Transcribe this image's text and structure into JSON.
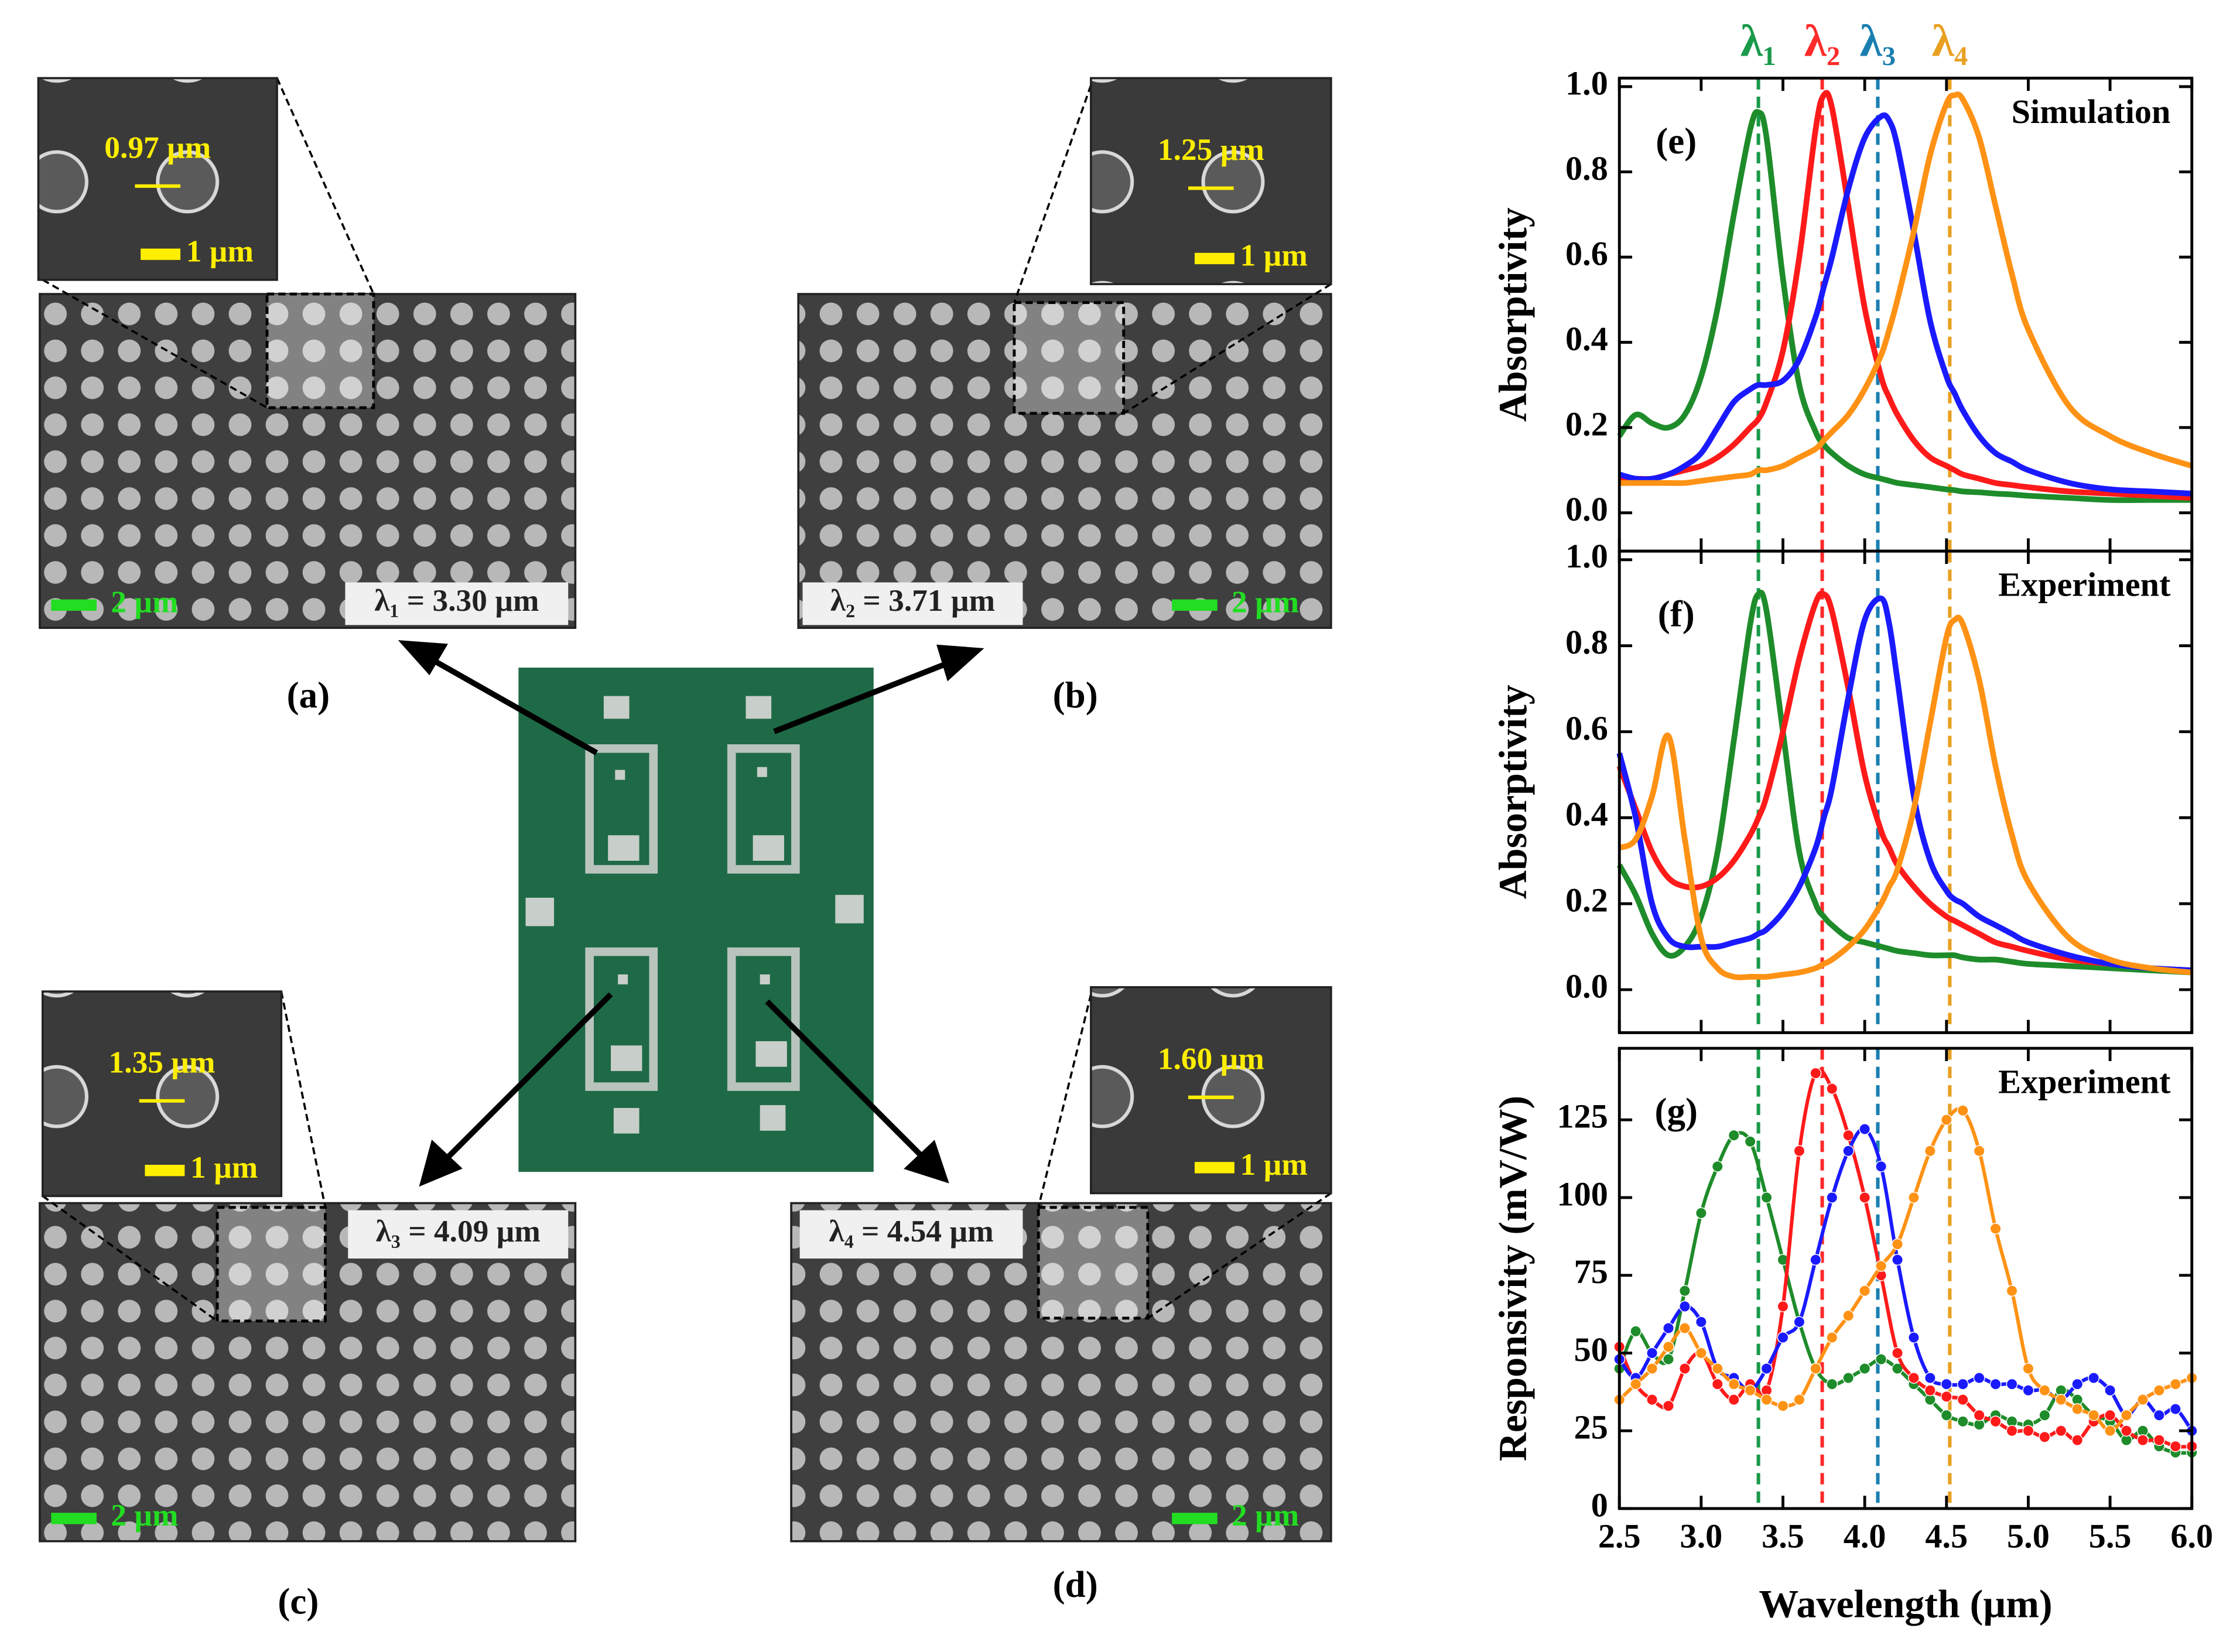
{
  "panels": [
    {
      "label": "(a)",
      "diameter": "0.97 µm",
      "scale_inset": "1 µm",
      "scale_main": "2 µm",
      "wavelength": "λ₁ = 3.30 µm"
    },
    {
      "label": "(b)",
      "diameter": "1.25 µm",
      "scale_inset": "1 µm",
      "scale_main": "2 µm",
      "wavelength": "λ₂ = 3.71 µm"
    },
    {
      "label": "(c)",
      "diameter": "1.35 µm",
      "scale_inset": "1 µm",
      "scale_main": "2 µm",
      "wavelength": "λ₃ = 4.09 µm"
    },
    {
      "label": "(d)",
      "diameter": "1.60 µm",
      "scale_inset": "1 µm",
      "scale_main": "2 µm",
      "wavelength": "λ₄ = 4.54 µm"
    }
  ],
  "chart_data": [
    {
      "type": "line",
      "panel_label": "(e)",
      "note": "Simulation",
      "y_label": "Absorptivity",
      "show_xtick_labels": false,
      "markers": false,
      "x": [
        2.5,
        2.6,
        2.7,
        2.8,
        2.9,
        3.0,
        3.1,
        3.2,
        3.3,
        3.35,
        3.4,
        3.5,
        3.6,
        3.7,
        3.75,
        3.8,
        3.9,
        4.0,
        4.1,
        4.15,
        4.2,
        4.3,
        4.4,
        4.5,
        4.55,
        4.6,
        4.7,
        4.8,
        4.9,
        5.0,
        5.25,
        5.5,
        5.75,
        6.0
      ],
      "xlim": [
        2.5,
        6.0
      ],
      "ylim": [
        -0.09,
        1.02
      ],
      "xticks": [
        2.5,
        3,
        3.5,
        4,
        4.5,
        5,
        5.5,
        6
      ],
      "yticks": [
        {
          "value": 0,
          "label": "0.0"
        },
        0.2,
        0.4,
        0.6,
        0.8,
        {
          "value": 1,
          "label": "1.0"
        }
      ],
      "vlines": [
        {
          "value": 3.35,
          "color": "#1a9a4a",
          "label": "λ₁"
        },
        {
          "value": 3.74,
          "color": "#ff2a2a",
          "label": "λ₂"
        },
        {
          "value": 4.08,
          "color": "#1a7fb0",
          "label": "λ₃"
        },
        {
          "value": 4.52,
          "color": "#e8a020",
          "label": "λ₄"
        }
      ],
      "series": [
        {
          "color": "#1e8c2a",
          "values": [
            0.18,
            0.23,
            0.21,
            0.2,
            0.23,
            0.32,
            0.48,
            0.7,
            0.9,
            0.94,
            0.88,
            0.55,
            0.3,
            0.19,
            0.16,
            0.14,
            0.11,
            0.09,
            0.08,
            0.075,
            0.07,
            0.065,
            0.06,
            0.055,
            0.053,
            0.05,
            0.048,
            0.045,
            0.043,
            0.04,
            0.035,
            0.03,
            0.03,
            0.03
          ]
        },
        {
          "color": "#ff1a1a",
          "values": [
            0.08,
            0.08,
            0.08,
            0.09,
            0.1,
            0.11,
            0.13,
            0.16,
            0.2,
            0.22,
            0.26,
            0.38,
            0.6,
            0.9,
            0.98,
            0.95,
            0.72,
            0.48,
            0.32,
            0.27,
            0.23,
            0.17,
            0.13,
            0.11,
            0.1,
            0.09,
            0.08,
            0.07,
            0.065,
            0.06,
            0.05,
            0.045,
            0.04,
            0.035
          ]
        },
        {
          "color": "#1a1aff",
          "values": [
            0.09,
            0.08,
            0.08,
            0.09,
            0.11,
            0.14,
            0.2,
            0.26,
            0.29,
            0.3,
            0.3,
            0.31,
            0.36,
            0.46,
            0.53,
            0.6,
            0.76,
            0.88,
            0.93,
            0.92,
            0.86,
            0.66,
            0.45,
            0.32,
            0.28,
            0.24,
            0.18,
            0.14,
            0.12,
            0.1,
            0.07,
            0.055,
            0.05,
            0.045
          ]
        },
        {
          "color": "#ff9214",
          "values": [
            0.07,
            0.07,
            0.07,
            0.07,
            0.07,
            0.075,
            0.08,
            0.085,
            0.09,
            0.1,
            0.1,
            0.11,
            0.13,
            0.15,
            0.17,
            0.19,
            0.23,
            0.29,
            0.37,
            0.43,
            0.5,
            0.66,
            0.84,
            0.96,
            0.98,
            0.97,
            0.88,
            0.72,
            0.56,
            0.43,
            0.25,
            0.18,
            0.14,
            0.11
          ]
        }
      ]
    },
    {
      "type": "line",
      "panel_label": "(f)",
      "note": "Experiment",
      "y_label": "Absorptivity",
      "show_xtick_labels": false,
      "markers": false,
      "x": [
        2.5,
        2.6,
        2.7,
        2.8,
        2.9,
        3.0,
        3.1,
        3.2,
        3.3,
        3.35,
        3.4,
        3.5,
        3.6,
        3.7,
        3.75,
        3.8,
        3.9,
        4.0,
        4.1,
        4.15,
        4.2,
        4.3,
        4.4,
        4.5,
        4.55,
        4.6,
        4.7,
        4.8,
        4.9,
        5.0,
        5.25,
        5.5,
        5.75,
        6.0
      ],
      "xlim": [
        2.5,
        6.0
      ],
      "ylim": [
        -0.1,
        1.02
      ],
      "xticks": [
        2.5,
        3,
        3.5,
        4,
        4.5,
        5,
        5.5,
        6
      ],
      "yticks": [
        {
          "value": 0,
          "label": "0.0"
        },
        0.2,
        0.4,
        0.6,
        0.8,
        {
          "value": 1,
          "label": "1.0"
        }
      ],
      "vlines": [
        {
          "value": 3.35,
          "color": "#1a9a4a"
        },
        {
          "value": 3.74,
          "color": "#ff2a2a"
        },
        {
          "value": 4.08,
          "color": "#1a7fb0"
        },
        {
          "value": 4.52,
          "color": "#e8a020"
        }
      ],
      "series": [
        {
          "color": "#1e8c2a",
          "values": [
            0.29,
            0.22,
            0.13,
            0.08,
            0.1,
            0.17,
            0.32,
            0.58,
            0.85,
            0.92,
            0.88,
            0.6,
            0.32,
            0.2,
            0.17,
            0.15,
            0.12,
            0.11,
            0.1,
            0.095,
            0.09,
            0.085,
            0.08,
            0.08,
            0.08,
            0.075,
            0.07,
            0.07,
            0.065,
            0.06,
            0.055,
            0.05,
            0.045,
            0.04
          ]
        },
        {
          "color": "#ff1a1a",
          "values": [
            0.52,
            0.42,
            0.32,
            0.26,
            0.24,
            0.24,
            0.26,
            0.3,
            0.36,
            0.4,
            0.45,
            0.6,
            0.77,
            0.9,
            0.92,
            0.88,
            0.7,
            0.5,
            0.37,
            0.33,
            0.29,
            0.24,
            0.2,
            0.17,
            0.16,
            0.15,
            0.13,
            0.11,
            0.1,
            0.09,
            0.07,
            0.06,
            0.05,
            0.045
          ]
        },
        {
          "color": "#1a1aff",
          "values": [
            0.55,
            0.4,
            0.2,
            0.12,
            0.1,
            0.1,
            0.1,
            0.11,
            0.12,
            0.13,
            0.14,
            0.18,
            0.24,
            0.33,
            0.4,
            0.47,
            0.68,
            0.86,
            0.91,
            0.85,
            0.72,
            0.45,
            0.3,
            0.23,
            0.21,
            0.2,
            0.17,
            0.15,
            0.13,
            0.11,
            0.08,
            0.06,
            0.05,
            0.045
          ]
        },
        {
          "color": "#ff9214",
          "values": [
            0.33,
            0.35,
            0.45,
            0.59,
            0.35,
            0.12,
            0.05,
            0.03,
            0.03,
            0.03,
            0.03,
            0.035,
            0.04,
            0.05,
            0.06,
            0.07,
            0.1,
            0.14,
            0.2,
            0.24,
            0.28,
            0.42,
            0.62,
            0.82,
            0.86,
            0.85,
            0.72,
            0.52,
            0.36,
            0.25,
            0.12,
            0.07,
            0.05,
            0.04
          ]
        }
      ]
    },
    {
      "type": "line",
      "panel_label": "(g)",
      "note": "Experiment",
      "y_label": "Responsivity (mV/W)",
      "x_label": "Wavelength (µm)",
      "show_xtick_labels": true,
      "markers": true,
      "x": [
        2.5,
        2.6,
        2.7,
        2.8,
        2.9,
        3.0,
        3.1,
        3.2,
        3.3,
        3.4,
        3.5,
        3.6,
        3.7,
        3.8,
        3.9,
        4.0,
        4.1,
        4.2,
        4.3,
        4.4,
        4.5,
        4.6,
        4.7,
        4.8,
        4.9,
        5.0,
        5.1,
        5.2,
        5.3,
        5.4,
        5.5,
        5.6,
        5.7,
        5.8,
        5.9,
        6.0
      ],
      "xlim": [
        2.5,
        6.0
      ],
      "ylim": [
        0,
        148
      ],
      "xticks": [
        2.5,
        {
          "value": 3,
          "label": "3.0"
        },
        3.5,
        {
          "value": 4,
          "label": "4.0"
        },
        4.5,
        {
          "value": 5,
          "label": "5.0"
        },
        5.5,
        {
          "value": 6,
          "label": "6.0"
        }
      ],
      "yticks": [
        0,
        25,
        50,
        75,
        100,
        125
      ],
      "vlines": [
        {
          "value": 3.35,
          "color": "#1a9a4a"
        },
        {
          "value": 3.74,
          "color": "#ff2a2a"
        },
        {
          "value": 4.08,
          "color": "#1a7fb0"
        },
        {
          "value": 4.52,
          "color": "#e8a020"
        }
      ],
      "series": [
        {
          "color": "#1e8c2a",
          "values": [
            45,
            57,
            50,
            48,
            70,
            95,
            110,
            120,
            118,
            100,
            80,
            60,
            45,
            40,
            42,
            45,
            48,
            45,
            40,
            35,
            30,
            28,
            27,
            30,
            28,
            27,
            30,
            38,
            35,
            30,
            28,
            22,
            25,
            20,
            18,
            18
          ]
        },
        {
          "color": "#ff1a1a",
          "values": [
            52,
            40,
            35,
            33,
            45,
            50,
            40,
            35,
            40,
            38,
            65,
            115,
            140,
            135,
            120,
            100,
            75,
            50,
            42,
            38,
            36,
            35,
            30,
            28,
            25,
            25,
            23,
            25,
            22,
            28,
            30,
            25,
            22,
            22,
            20,
            20
          ]
        },
        {
          "color": "#1a1aff",
          "values": [
            48,
            42,
            50,
            58,
            65,
            60,
            45,
            42,
            38,
            45,
            55,
            60,
            80,
            100,
            115,
            122,
            110,
            80,
            55,
            42,
            40,
            40,
            42,
            40,
            40,
            38,
            38,
            35,
            40,
            42,
            38,
            30,
            35,
            30,
            32,
            25
          ]
        },
        {
          "color": "#ff9214",
          "values": [
            35,
            40,
            45,
            52,
            58,
            50,
            45,
            40,
            38,
            35,
            33,
            35,
            45,
            55,
            62,
            70,
            78,
            85,
            100,
            115,
            125,
            128,
            115,
            90,
            70,
            45,
            38,
            35,
            32,
            30,
            25,
            30,
            35,
            38,
            40,
            42
          ]
        }
      ]
    }
  ]
}
